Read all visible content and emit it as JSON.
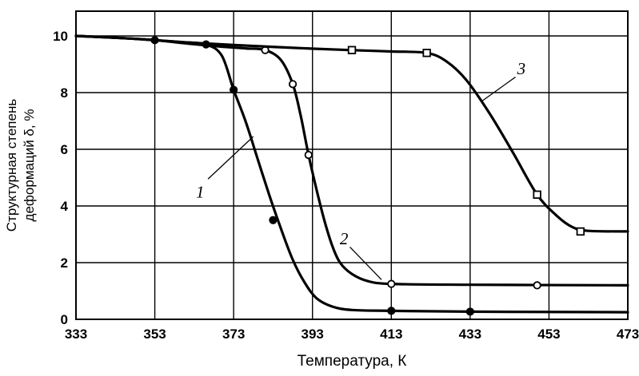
{
  "chart_data": {
    "type": "line",
    "title": "",
    "xlabel": "Температура, К",
    "ylabel": "Структурная степень деформаций δ, %",
    "ylabel_lines": [
      "Структурная степень",
      "деформаций δ, %"
    ],
    "xlim": [
      333,
      473
    ],
    "ylim": [
      0,
      10
    ],
    "xticks": [
      333,
      353,
      373,
      393,
      413,
      433,
      453,
      473
    ],
    "yticks": [
      0,
      2,
      4,
      6,
      8,
      10
    ],
    "grid": true,
    "series": [
      {
        "name": "1",
        "marker": "filled-circle",
        "marker_points": [
          [
            353,
            9.85
          ],
          [
            366,
            9.7
          ],
          [
            373,
            8.1
          ],
          [
            383,
            3.5
          ],
          [
            413,
            0.3
          ],
          [
            433,
            0.27
          ]
        ],
        "curve": [
          [
            333,
            10
          ],
          [
            345,
            9.92
          ],
          [
            353,
            9.85
          ],
          [
            360,
            9.78
          ],
          [
            366,
            9.7
          ],
          [
            370,
            9.3
          ],
          [
            373,
            8.1
          ],
          [
            376,
            7.0
          ],
          [
            379,
            5.7
          ],
          [
            382,
            4.4
          ],
          [
            385,
            3.2
          ],
          [
            388,
            2.1
          ],
          [
            391,
            1.3
          ],
          [
            394,
            0.75
          ],
          [
            398,
            0.45
          ],
          [
            403,
            0.33
          ],
          [
            413,
            0.3
          ],
          [
            433,
            0.27
          ],
          [
            473,
            0.25
          ]
        ]
      },
      {
        "name": "2",
        "marker": "open-circle",
        "marker_points": [
          [
            381,
            9.5
          ],
          [
            388,
            8.3
          ],
          [
            392,
            5.8
          ],
          [
            413,
            1.25
          ],
          [
            450,
            1.2
          ]
        ],
        "curve": [
          [
            333,
            10
          ],
          [
            345,
            9.92
          ],
          [
            353,
            9.85
          ],
          [
            362,
            9.72
          ],
          [
            370,
            9.62
          ],
          [
            376,
            9.56
          ],
          [
            381,
            9.5
          ],
          [
            385,
            9.15
          ],
          [
            388,
            8.3
          ],
          [
            390,
            7.2
          ],
          [
            392,
            5.8
          ],
          [
            394,
            4.6
          ],
          [
            396,
            3.5
          ],
          [
            398,
            2.6
          ],
          [
            400,
            2.0
          ],
          [
            403,
            1.6
          ],
          [
            407,
            1.35
          ],
          [
            413,
            1.25
          ],
          [
            433,
            1.22
          ],
          [
            473,
            1.2
          ]
        ]
      },
      {
        "name": "3",
        "marker": "open-square",
        "marker_points": [
          [
            403,
            9.5
          ],
          [
            422,
            9.4
          ],
          [
            450,
            4.4
          ],
          [
            461,
            3.1
          ]
        ],
        "curve": [
          [
            333,
            10
          ],
          [
            348,
            9.9
          ],
          [
            360,
            9.78
          ],
          [
            373,
            9.68
          ],
          [
            388,
            9.58
          ],
          [
            403,
            9.5
          ],
          [
            413,
            9.45
          ],
          [
            422,
            9.4
          ],
          [
            427,
            9.1
          ],
          [
            432,
            8.45
          ],
          [
            438,
            7.25
          ],
          [
            444,
            5.85
          ],
          [
            450,
            4.4
          ],
          [
            455,
            3.65
          ],
          [
            459,
            3.25
          ],
          [
            463,
            3.12
          ],
          [
            473,
            3.1
          ]
        ]
      }
    ],
    "annotations": [
      {
        "text": "1",
        "x": 364.5,
        "y": 4.5,
        "leader": [
          [
            366.5,
            4.95
          ],
          [
            378,
            6.45
          ]
        ]
      },
      {
        "text": "2",
        "x": 401,
        "y": 2.85,
        "leader": [
          [
            402.5,
            2.55
          ],
          [
            410.5,
            1.4
          ]
        ]
      },
      {
        "text": "3",
        "x": 446,
        "y": 8.85,
        "leader": [
          [
            444.5,
            8.55
          ],
          [
            436,
            7.7
          ]
        ]
      }
    ]
  }
}
